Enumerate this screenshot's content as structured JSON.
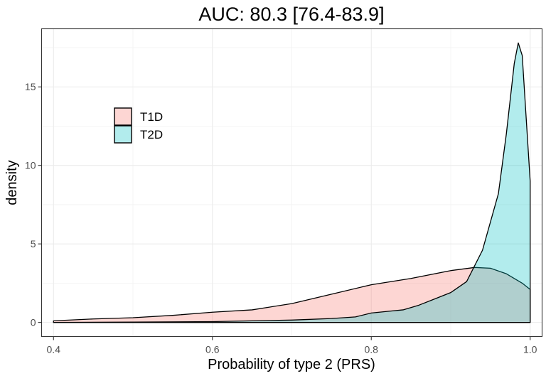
{
  "chart_data": {
    "type": "area",
    "title": "AUC: 80.3 [76.4-83.9]",
    "xlabel": "Probability of type 2 (PRS)",
    "ylabel": "density",
    "xlim": [
      0.385,
      1.015
    ],
    "ylim": [
      -0.9,
      18.7
    ],
    "x_ticks": [
      {
        "value": 0.4,
        "label": "0.4"
      },
      {
        "value": 0.6,
        "label": "0.6"
      },
      {
        "value": 0.8,
        "label": "0.8"
      },
      {
        "value": 1.0,
        "label": "1.0"
      }
    ],
    "y_ticks": [
      {
        "value": 0,
        "label": "0"
      },
      {
        "value": 5,
        "label": "5"
      },
      {
        "value": 10,
        "label": "10"
      },
      {
        "value": 15,
        "label": "15"
      }
    ],
    "grid": true,
    "legend_position": "top-left",
    "series": [
      {
        "name": "T1D",
        "color": "#f8766d",
        "x": [
          0.4,
          0.45,
          0.5,
          0.55,
          0.6,
          0.65,
          0.7,
          0.75,
          0.8,
          0.85,
          0.9,
          0.93,
          0.95,
          0.97,
          0.99,
          1.0
        ],
        "y": [
          0.1,
          0.22,
          0.3,
          0.45,
          0.65,
          0.8,
          1.2,
          1.8,
          2.4,
          2.8,
          3.3,
          3.5,
          3.45,
          3.1,
          2.5,
          2.1
        ]
      },
      {
        "name": "T2D",
        "color": "#00bfc4",
        "x": [
          0.4,
          0.5,
          0.6,
          0.65,
          0.7,
          0.75,
          0.78,
          0.8,
          0.82,
          0.84,
          0.86,
          0.88,
          0.9,
          0.92,
          0.94,
          0.96,
          0.97,
          0.98,
          0.985,
          0.99,
          0.995,
          1.0
        ],
        "y": [
          0.0,
          0.02,
          0.05,
          0.1,
          0.15,
          0.25,
          0.35,
          0.6,
          0.7,
          0.8,
          1.1,
          1.5,
          1.9,
          2.6,
          4.6,
          8.2,
          12.0,
          16.5,
          17.8,
          17.0,
          13.0,
          9.0
        ]
      }
    ]
  }
}
